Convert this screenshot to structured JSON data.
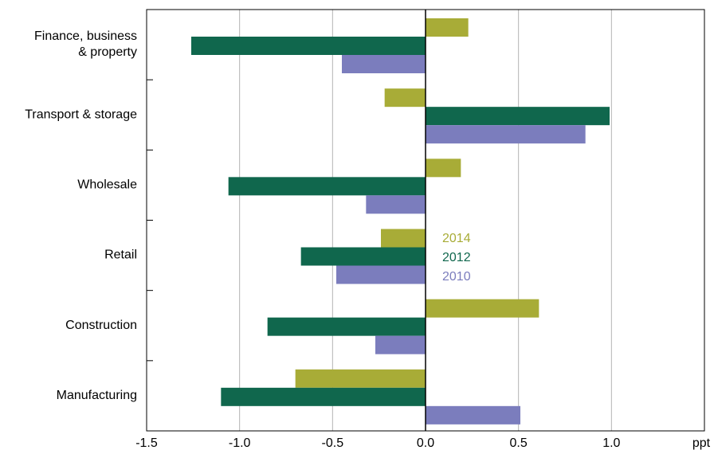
{
  "chart_data": {
    "type": "bar",
    "orientation": "horizontal",
    "categories": [
      "Finance, business & property",
      "Transport & storage",
      "Wholesale",
      "Retail",
      "Construction",
      "Manufacturing"
    ],
    "category_lines": [
      [
        "Finance, business",
        "& property"
      ],
      [
        "Transport & storage"
      ],
      [
        "Wholesale"
      ],
      [
        "Retail"
      ],
      [
        "Construction"
      ],
      [
        "Manufacturing"
      ]
    ],
    "series": [
      {
        "name": "2014",
        "color": "#a8ac37",
        "values": [
          0.23,
          -0.22,
          0.19,
          -0.24,
          0.61,
          -0.7
        ]
      },
      {
        "name": "2012",
        "color": "#10674d",
        "values": [
          -1.26,
          0.99,
          -1.06,
          -0.67,
          -0.85,
          -1.1
        ]
      },
      {
        "name": "2010",
        "color": "#7b7dbd",
        "values": [
          -0.45,
          0.86,
          -0.32,
          -0.48,
          -0.27,
          0.51
        ]
      }
    ],
    "xlim": [
      -1.5,
      1.5
    ],
    "xticks": [
      -1.5,
      -1.0,
      -0.5,
      0.0,
      0.5,
      1.0
    ],
    "xtick_labels": [
      "-1.5",
      "-1.0",
      "-0.5",
      "0.0",
      "0.5",
      "1.0"
    ],
    "unit_label": "ppt",
    "grid": "vertical",
    "legend_position": "center"
  }
}
